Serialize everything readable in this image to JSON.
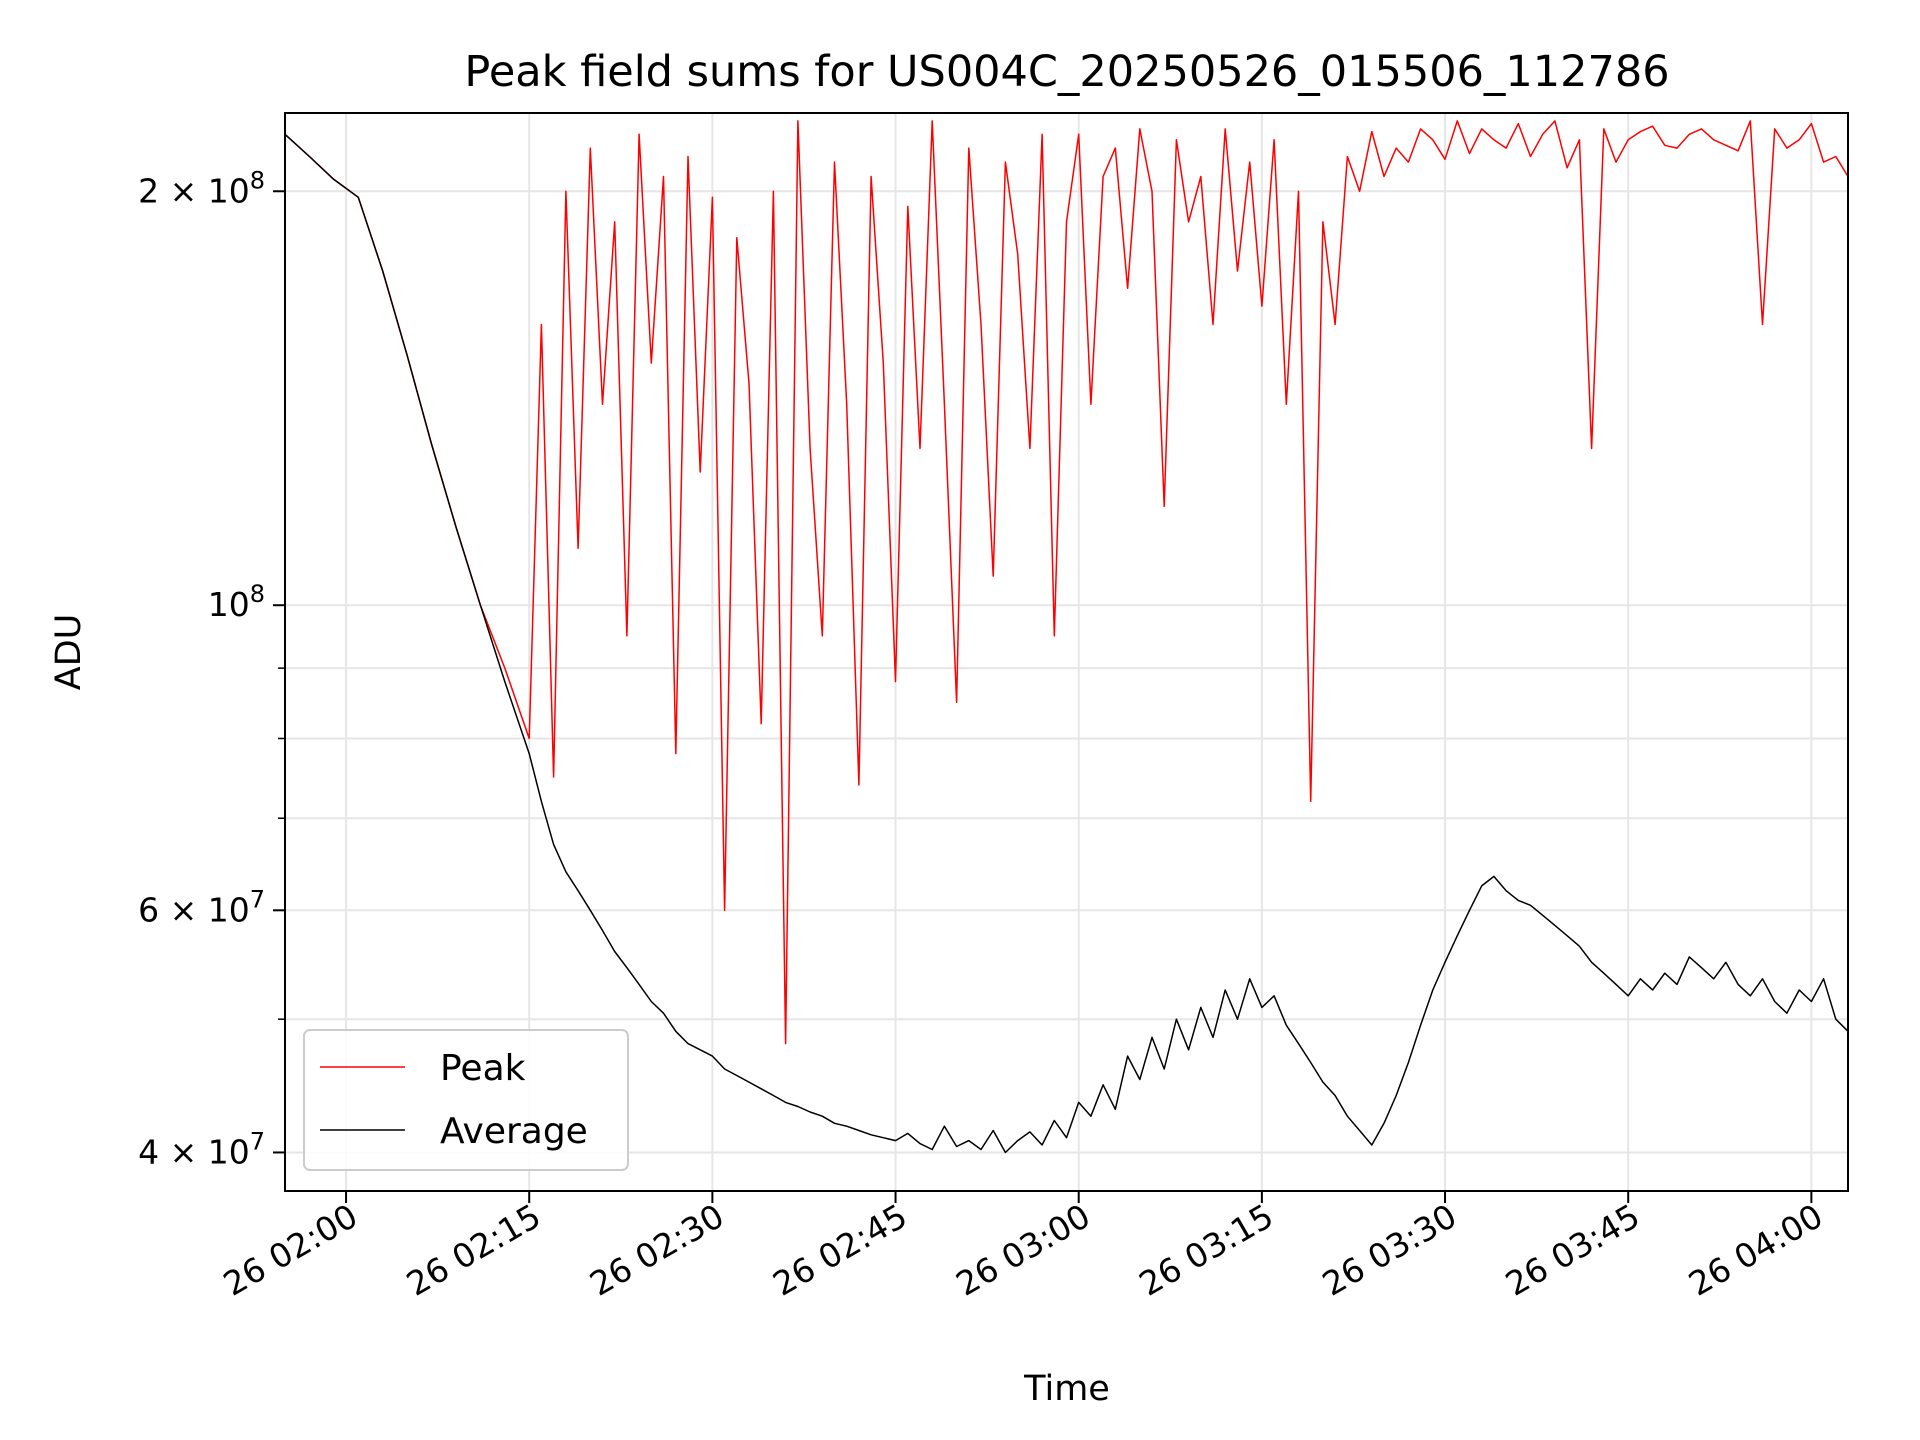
{
  "chart_data": {
    "type": "line",
    "title": "Peak field sums for US004C_20250526_015506_112786",
    "xlabel": "Time",
    "ylabel": "ADU",
    "yscale": "log",
    "xlim": [
      "2025-05-26 01:55",
      "2025-05-26 04:03"
    ],
    "ylim": [
      37500000,
      228000000
    ],
    "grid": true,
    "legend_position": "lower-left",
    "x_ticks": [
      "26 02:00",
      "26 02:15",
      "26 02:30",
      "26 02:45",
      "26 03:00",
      "26 03:15",
      "26 03:30",
      "26 03:45",
      "26 04:00"
    ],
    "y_ticks": [
      {
        "label": "2 × 10^8",
        "value": 200000000
      },
      {
        "label": "10^8",
        "value": 100000000
      },
      {
        "label": "6 × 10^7",
        "value": 60000000
      },
      {
        "label": "4 × 10^7",
        "value": 40000000
      }
    ],
    "x": [
      "2025-05-26 01:55",
      "2025-05-26 01:57",
      "2025-05-26 01:59",
      "2025-05-26 02:01",
      "2025-05-26 02:03",
      "2025-05-26 02:05",
      "2025-05-26 02:07",
      "2025-05-26 02:09",
      "2025-05-26 02:11",
      "2025-05-26 02:13",
      "2025-05-26 02:15",
      "2025-05-26 02:16",
      "2025-05-26 02:17",
      "2025-05-26 02:18",
      "2025-05-26 02:19",
      "2025-05-26 02:20",
      "2025-05-26 02:21",
      "2025-05-26 02:22",
      "2025-05-26 02:23",
      "2025-05-26 02:24",
      "2025-05-26 02:25",
      "2025-05-26 02:26",
      "2025-05-26 02:27",
      "2025-05-26 02:28",
      "2025-05-26 02:29",
      "2025-05-26 02:30",
      "2025-05-26 02:31",
      "2025-05-26 02:32",
      "2025-05-26 02:33",
      "2025-05-26 02:34",
      "2025-05-26 02:35",
      "2025-05-26 02:36",
      "2025-05-26 02:37",
      "2025-05-26 02:38",
      "2025-05-26 02:39",
      "2025-05-26 02:40",
      "2025-05-26 02:41",
      "2025-05-26 02:42",
      "2025-05-26 02:43",
      "2025-05-26 02:44",
      "2025-05-26 02:45",
      "2025-05-26 02:46",
      "2025-05-26 02:47",
      "2025-05-26 02:48",
      "2025-05-26 02:49",
      "2025-05-26 02:50",
      "2025-05-26 02:51",
      "2025-05-26 02:52",
      "2025-05-26 02:53",
      "2025-05-26 02:54",
      "2025-05-26 02:55",
      "2025-05-26 02:56",
      "2025-05-26 02:57",
      "2025-05-26 02:58",
      "2025-05-26 02:59",
      "2025-05-26 03:00",
      "2025-05-26 03:01",
      "2025-05-26 03:02",
      "2025-05-26 03:03",
      "2025-05-26 03:04",
      "2025-05-26 03:05",
      "2025-05-26 03:06",
      "2025-05-26 03:07",
      "2025-05-26 03:08",
      "2025-05-26 03:09",
      "2025-05-26 03:10",
      "2025-05-26 03:11",
      "2025-05-26 03:12",
      "2025-05-26 03:13",
      "2025-05-26 03:14",
      "2025-05-26 03:15",
      "2025-05-26 03:16",
      "2025-05-26 03:17",
      "2025-05-26 03:18",
      "2025-05-26 03:19",
      "2025-05-26 03:20",
      "2025-05-26 03:21",
      "2025-05-26 03:22",
      "2025-05-26 03:23",
      "2025-05-26 03:24",
      "2025-05-26 03:25",
      "2025-05-26 03:26",
      "2025-05-26 03:27",
      "2025-05-26 03:28",
      "2025-05-26 03:29",
      "2025-05-26 03:30",
      "2025-05-26 03:31",
      "2025-05-26 03:32",
      "2025-05-26 03:33",
      "2025-05-26 03:34",
      "2025-05-26 03:35",
      "2025-05-26 03:36",
      "2025-05-26 03:37",
      "2025-05-26 03:38",
      "2025-05-26 03:39",
      "2025-05-26 03:40",
      "2025-05-26 03:41",
      "2025-05-26 03:42",
      "2025-05-26 03:43",
      "2025-05-26 03:44",
      "2025-05-26 03:45",
      "2025-05-26 03:46",
      "2025-05-26 03:47",
      "2025-05-26 03:48",
      "2025-05-26 03:49",
      "2025-05-26 03:50",
      "2025-05-26 03:51",
      "2025-05-26 03:52",
      "2025-05-26 03:53",
      "2025-05-26 03:54",
      "2025-05-26 03:55",
      "2025-05-26 03:56",
      "2025-05-26 03:57",
      "2025-05-26 03:58",
      "2025-05-26 03:59",
      "2025-05-26 04:00",
      "2025-05-26 04:01",
      "2025-05-26 04:02",
      "2025-05-26 04:03"
    ],
    "series": [
      {
        "name": "Peak",
        "color": "#ff0000",
        "values": [
          220000000,
          212000000,
          204000000,
          198000000,
          175000000,
          152000000,
          131000000,
          114000000,
          100000000,
          90000000,
          80000000,
          160000000,
          75000000,
          200000000,
          110000000,
          215000000,
          140000000,
          190000000,
          95000000,
          220000000,
          150000000,
          205000000,
          78000000,
          212000000,
          125000000,
          198000000,
          60000000,
          185000000,
          145000000,
          82000000,
          200000000,
          48000000,
          225000000,
          130000000,
          95000000,
          210000000,
          140000000,
          74000000,
          205000000,
          150000000,
          88000000,
          195000000,
          130000000,
          225000000,
          140000000,
          85000000,
          215000000,
          160000000,
          105000000,
          210000000,
          180000000,
          130000000,
          220000000,
          95000000,
          190000000,
          220000000,
          140000000,
          205000000,
          215000000,
          170000000,
          222000000,
          200000000,
          118000000,
          218000000,
          190000000,
          205000000,
          160000000,
          222000000,
          175000000,
          210000000,
          165000000,
          218000000,
          140000000,
          200000000,
          72000000,
          190000000,
          160000000,
          212000000,
          200000000,
          221000000,
          205000000,
          215000000,
          210000000,
          222000000,
          218000000,
          211000000,
          225000000,
          213000000,
          222000000,
          218000000,
          215000000,
          224000000,
          212000000,
          220000000,
          225000000,
          208000000,
          218000000,
          130000000,
          222000000,
          210000000,
          218000000,
          221000000,
          223000000,
          216000000,
          215000000,
          220000000,
          222000000,
          218000000,
          216000000,
          214000000,
          225000000,
          160000000,
          222000000,
          215000000,
          218000000,
          224000000,
          210000000,
          212000000,
          205000000
        ]
      },
      {
        "name": "Average",
        "color": "#000000",
        "values": [
          220000000,
          212000000,
          204000000,
          198000000,
          175000000,
          152000000,
          131000000,
          114000000,
          100000000,
          88000000,
          78000000,
          72000000,
          67000000,
          64000000,
          62000000,
          60000000,
          58000000,
          56000000,
          54500000,
          53000000,
          51500000,
          50500000,
          49000000,
          48000000,
          47500000,
          47000000,
          46000000,
          45500000,
          45000000,
          44500000,
          44000000,
          43500000,
          43200000,
          42800000,
          42500000,
          42000000,
          41800000,
          41500000,
          41200000,
          41000000,
          40800000,
          41300000,
          40600000,
          40200000,
          41800000,
          40400000,
          40800000,
          40200000,
          41500000,
          40000000,
          40800000,
          41400000,
          40500000,
          42200000,
          41000000,
          43500000,
          42500000,
          44800000,
          43000000,
          47000000,
          45200000,
          48500000,
          46000000,
          50000000,
          47500000,
          51000000,
          48500000,
          52500000,
          50000000,
          53500000,
          51000000,
          52000000,
          49500000,
          48000000,
          46500000,
          45000000,
          44000000,
          42500000,
          41500000,
          40500000,
          42000000,
          44000000,
          46500000,
          49500000,
          52500000,
          55000000,
          57500000,
          60000000,
          62500000,
          63500000,
          62000000,
          61000000,
          60500000,
          59500000,
          58500000,
          57500000,
          56500000,
          55000000,
          54000000,
          53000000,
          52000000,
          53500000,
          52500000,
          54000000,
          53000000,
          55500000,
          54500000,
          53500000,
          55000000,
          53000000,
          52000000,
          53500000,
          51500000,
          50500000,
          52500000,
          51500000,
          53500000,
          50000000,
          49000000
        ]
      }
    ]
  }
}
